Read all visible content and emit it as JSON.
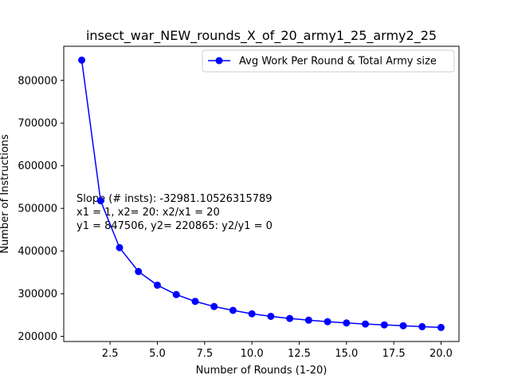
{
  "chart_data": {
    "type": "line",
    "title": "insect_war_NEW_rounds_X_of_20_army1_25_army2_25",
    "xlabel": "Number of Rounds (1-20)",
    "ylabel": "Number of Instructions",
    "xlim": [
      0.05,
      20.95
    ],
    "ylim": [
      188000,
      880000
    ],
    "x_ticks": [
      2.5,
      5.0,
      7.5,
      10.0,
      12.5,
      15.0,
      17.5,
      20.0
    ],
    "x_tick_labels": [
      "2.5",
      "5.0",
      "7.5",
      "10.0",
      "12.5",
      "15.0",
      "17.5",
      "20.0"
    ],
    "y_ticks": [
      200000,
      300000,
      400000,
      500000,
      600000,
      700000,
      800000
    ],
    "y_tick_labels": [
      "200000",
      "300000",
      "400000",
      "500000",
      "600000",
      "700000",
      "800000"
    ],
    "grid": false,
    "legend_position": "top-right",
    "series": [
      {
        "name": "Avg Work Per Round & Total Army size",
        "color": "#0000ff",
        "x": [
          1,
          2,
          3,
          4,
          5,
          6,
          7,
          8,
          9,
          10,
          11,
          12,
          13,
          14,
          15,
          16,
          17,
          18,
          19,
          20
        ],
        "y": [
          847506,
          518000,
          408000,
          352000,
          320000,
          298000,
          282000,
          270000,
          261000,
          253000,
          247000,
          242000,
          238000,
          234500,
          231500,
          229000,
          227000,
          225000,
          222800,
          220865
        ]
      }
    ],
    "annotation": [
      "Slope (# insts): -32981.10526315789",
      "x1 = 1, x2= 20: x2/x1 = 20",
      "y1 = 847506, y2= 220865: y2/y1 = 0"
    ]
  }
}
